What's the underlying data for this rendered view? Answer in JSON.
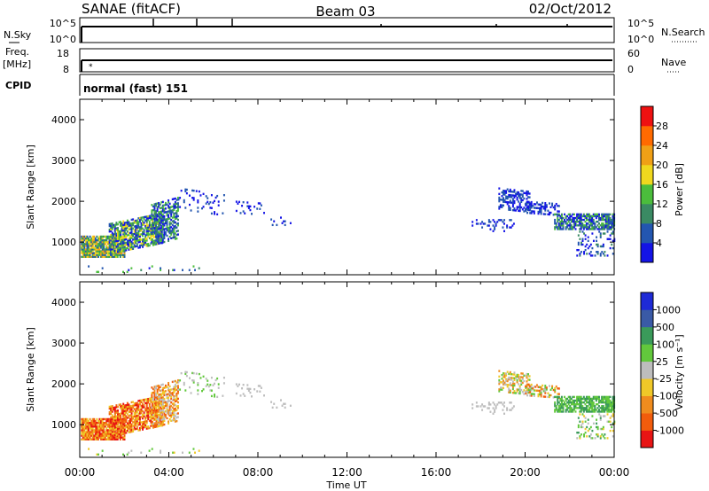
{
  "header": {
    "station": "SANAE (fitACF)",
    "beam": "Beam 03",
    "date": "02/Oct/2012"
  },
  "status_panels": {
    "nsky": {
      "left_label": "N.Sky",
      "left_ticks": [
        "10^5",
        "10^0"
      ],
      "right_label": "N.Search",
      "right_ticks": [
        "10^5",
        "10^0"
      ]
    },
    "freq": {
      "left_label_1": "Freq.",
      "left_label_2": "[MHz]",
      "left_ticks": [
        "18",
        "8"
      ],
      "right_label": "Nave",
      "right_ticks": [
        "60",
        "0"
      ]
    },
    "cpid": {
      "left_label": "CPID",
      "text": "normal (fast) 151"
    }
  },
  "colors": {
    "power": [
      "#1414e6",
      "#2356b0",
      "#3a8a63",
      "#4bbd3c",
      "#f0d81e",
      "#f0a016",
      "#ff6a00",
      "#ee1111"
    ],
    "velocity": [
      "#e81414",
      "#f25c0c",
      "#f08c1e",
      "#f0c828",
      "#bdbdbd",
      "#62c83c",
      "#3a9a5a",
      "#3a5aa6",
      "#1e2ad6"
    ]
  },
  "chart_data": [
    {
      "type": "heatmap",
      "name": "power",
      "ylabel": "Slant Range [km]",
      "ylim": [
        200,
        4500
      ],
      "yticks": [
        "1000",
        "2000",
        "3000",
        "4000"
      ],
      "colorbar": {
        "label": "Power [dB]",
        "range": [
          0,
          32
        ],
        "ticks": [
          "4",
          "8",
          "12",
          "16",
          "20",
          "24",
          "28"
        ]
      }
    },
    {
      "type": "heatmap",
      "name": "velocity",
      "xlabel": "Time UT",
      "ylabel": "Slant Range [km]",
      "ylim": [
        200,
        4500
      ],
      "xlim": [
        0,
        24
      ],
      "xticks": [
        "00:00",
        "04:00",
        "08:00",
        "12:00",
        "16:00",
        "20:00",
        "00:00"
      ],
      "yticks": [
        "1000",
        "2000",
        "3000",
        "4000"
      ],
      "colorbar": {
        "label": "Velocity [m s⁻¹]",
        "ticks": [
          "1000",
          "500",
          "100",
          "25",
          "-25",
          "-100",
          "-500",
          "-1000"
        ]
      }
    }
  ]
}
